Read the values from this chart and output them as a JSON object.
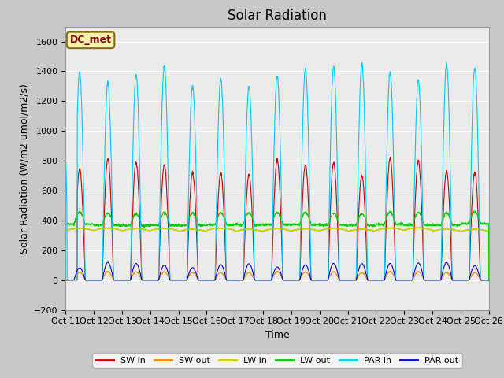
{
  "title": "Solar Radiation",
  "ylabel": "Solar Radiation (W/m2 umol/m2/s)",
  "xlabel": "Time",
  "ylim": [
    -200,
    1700
  ],
  "yticks": [
    -200,
    0,
    200,
    400,
    600,
    800,
    1000,
    1200,
    1400,
    1600
  ],
  "xtick_labels": [
    "Oct 11",
    "Oct 12",
    "Oct 13",
    "Oct 14",
    "Oct 15",
    "Oct 16",
    "Oct 17",
    "Oct 18",
    "Oct 19",
    "Oct 20",
    "Oct 21",
    "Oct 22",
    "Oct 23",
    "Oct 24",
    "Oct 25",
    "Oct 26"
  ],
  "legend_label": "DC_met",
  "series": [
    "SW in",
    "SW out",
    "LW in",
    "LW out",
    "PAR in",
    "PAR out"
  ],
  "colors": {
    "SW in": "#cc0000",
    "SW out": "#ff8800",
    "LW in": "#cccc00",
    "LW out": "#00cc00",
    "PAR in": "#00ccff",
    "PAR out": "#0000cc"
  },
  "fig_bg": "#c8c8c8",
  "plot_bg": "#ebebeb",
  "title_fontsize": 12,
  "label_fontsize": 9,
  "tick_fontsize": 8
}
